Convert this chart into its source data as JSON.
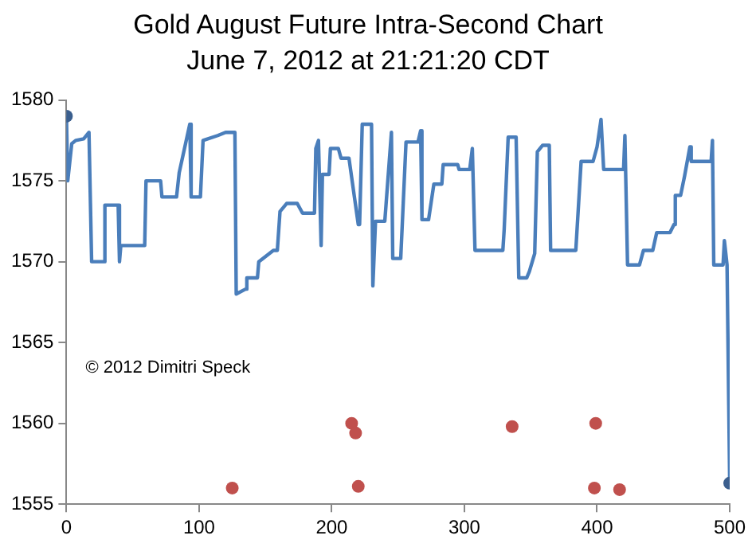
{
  "chart_data": {
    "type": "line",
    "title": "Gold August Future Intra-Second Chart",
    "subtitle": "June 7, 2012 at 21:21:20 CDT",
    "annotations": [
      "© 2012 Dimitri Speck"
    ],
    "xlim": [
      0,
      500
    ],
    "xticks": [
      0,
      100,
      200,
      300,
      400,
      500
    ],
    "ylim": [
      1555,
      1580
    ],
    "yticks": [
      1555,
      1560,
      1565,
      1570,
      1575,
      1580
    ],
    "grid": false,
    "legend": false,
    "series": [
      {
        "color": "#4a7ebb",
        "marker": "none",
        "x": [
          0,
          1,
          4,
          7,
          13,
          17,
          19,
          28,
          29,
          39,
          40,
          41,
          59,
          60,
          71,
          72,
          83,
          85,
          93,
          94,
          101,
          103,
          114,
          120,
          127,
          128,
          135,
          136,
          144,
          145,
          156,
          159,
          161,
          166,
          174,
          178,
          187,
          188,
          190,
          192,
          193,
          198,
          199,
          205,
          207,
          213,
          220,
          221,
          223,
          230,
          231,
          233,
          240,
          245,
          246,
          252,
          256,
          265,
          267,
          268,
          273,
          277,
          283,
          284,
          295,
          296,
          304,
          306,
          308,
          329,
          330,
          333,
          339,
          341,
          347,
          349,
          353,
          355,
          359,
          364,
          365,
          384,
          388,
          397,
          400,
          403,
          405,
          420,
          421,
          423,
          432,
          435,
          442,
          445,
          455,
          458,
          459,
          463,
          466,
          470,
          471,
          486,
          487,
          488,
          495,
          496,
          498,
          500
        ],
        "values": [
          1579,
          1575,
          1577.3,
          1577.5,
          1577.6,
          1578,
          1570,
          1570,
          1573.5,
          1573.5,
          1570,
          1571,
          1571,
          1575,
          1575,
          1574,
          1574,
          1575.5,
          1578.5,
          1574,
          1574,
          1577.5,
          1577.8,
          1578,
          1578,
          1568,
          1568.3,
          1569,
          1569,
          1570,
          1570.7,
          1570.7,
          1573.1,
          1573.6,
          1573.6,
          1573,
          1573,
          1577,
          1577.5,
          1571,
          1575.4,
          1575.4,
          1577,
          1577,
          1576.4,
          1576.4,
          1572.3,
          1572.3,
          1578.5,
          1578.5,
          1568.5,
          1572.5,
          1572.5,
          1578,
          1570.2,
          1570.2,
          1577.4,
          1577.4,
          1578.1,
          1572.6,
          1572.6,
          1574.8,
          1574.8,
          1576,
          1576,
          1575.7,
          1575.7,
          1577,
          1570.7,
          1570.7,
          1572,
          1577.7,
          1577.7,
          1569,
          1569,
          1569.4,
          1570.5,
          1576.8,
          1577.2,
          1577.2,
          1570.7,
          1570.7,
          1576.2,
          1576.2,
          1577.1,
          1578.8,
          1575.7,
          1575.7,
          1577.8,
          1569.8,
          1569.8,
          1570.7,
          1570.7,
          1571.8,
          1571.8,
          1572.3,
          1574.1,
          1574.1,
          1575.3,
          1577.1,
          1576.2,
          1576.2,
          1577.5,
          1569.8,
          1569.8,
          1571.3,
          1569.8,
          1556.3
        ]
      },
      {
        "type": "scatter",
        "color": "#3b5f8e",
        "marker": "circle",
        "x": [
          0,
          500
        ],
        "values": [
          1579,
          1556.3
        ]
      },
      {
        "type": "scatter",
        "color": "#c0504d",
        "marker": "circle",
        "x": [
          125,
          215,
          218,
          220,
          336,
          398,
          399,
          417
        ],
        "values": [
          1556,
          1560,
          1559.4,
          1556.1,
          1559.8,
          1556,
          1560,
          1555.9
        ]
      }
    ]
  }
}
